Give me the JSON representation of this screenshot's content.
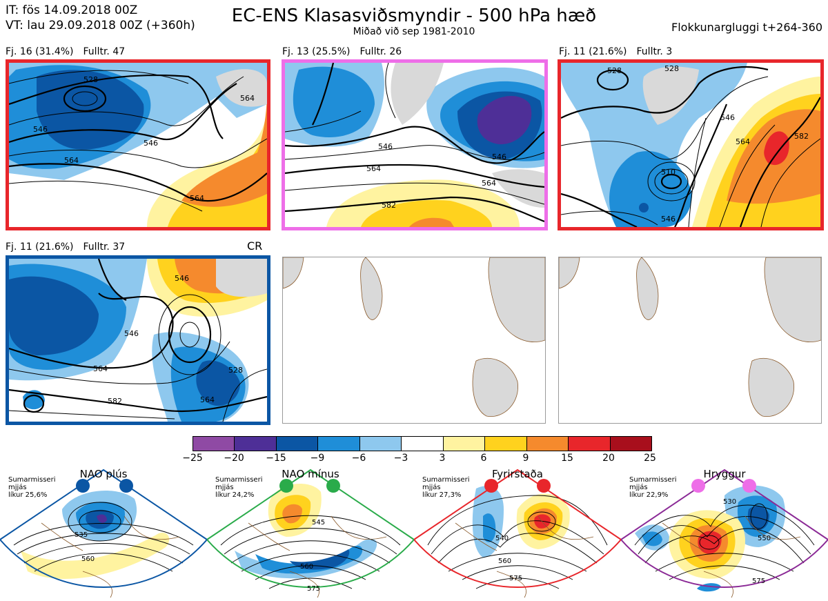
{
  "header": {
    "it_line": "IT: fös 14.09.2018 00Z",
    "vt_line": "VT: lau 29.09.2018 00Z  (+360h)",
    "title": "EC-ENS Klasasviðsmyndir - 500 hPa hæð",
    "subtitle": "Miðað við sep 1981-2010",
    "window": "Flokkunargluggi t+264-360"
  },
  "panels": [
    {
      "fj": "Fj. 16 (31.4%)",
      "fulltr": "Fulltr. 47",
      "border": "#e8262b",
      "contours": [
        "528",
        "546",
        "546",
        "564",
        "564",
        "564"
      ]
    },
    {
      "fj": "Fj. 13 (25.5%)",
      "fulltr": "Fulltr. 26",
      "border": "#ee6ee8",
      "contours": [
        "546",
        "546",
        "564",
        "564",
        "582"
      ]
    },
    {
      "fj": "Fj. 11 (21.6%)",
      "fulltr": "Fulltr. 3",
      "border": "#e8262b",
      "contours": [
        "528",
        "528",
        "546",
        "564",
        "582",
        "510",
        "546"
      ]
    },
    {
      "fj": "Fj. 11 (21.6%)",
      "fulltr": "Fulltr. 37",
      "border": "#0b56a4",
      "tag": "CR",
      "contours": [
        "546",
        "564",
        "564",
        "582",
        "546",
        "528"
      ]
    }
  ],
  "colorbar": {
    "labels": [
      "−25",
      "−20",
      "−15",
      "−9",
      "−6",
      "−3",
      "3",
      "6",
      "9",
      "15",
      "20",
      "25"
    ],
    "colors": [
      "#8f4aa4",
      "#4e2f97",
      "#0b56a4",
      "#1f8ed8",
      "#8ec8ee",
      "#ffffff",
      "#fff3a0",
      "#ffd21e",
      "#f58a2d",
      "#e8262b",
      "#a80f1c"
    ]
  },
  "regimes": [
    {
      "title": "NAO plús",
      "season": "Sumarmisseri",
      "smoothing": "mjjás",
      "probability": "líkur 25,6%",
      "dot_color": "#0b56a4",
      "frame_color": "#0b56a4",
      "contours": [
        "535",
        "560"
      ]
    },
    {
      "title": "NAO mínus",
      "season": "Sumarmisseri",
      "smoothing": "mjjás",
      "probability": "líkur 24,2%",
      "dot_color": "#2aab4a",
      "frame_color": "#2aab4a",
      "contours": [
        "545",
        "560",
        "575"
      ]
    },
    {
      "title": "Fyrirstaða",
      "season": "Sumarmisseri",
      "smoothing": "mjjás",
      "probability": "líkur 27,3%",
      "dot_color": "#e8262b",
      "frame_color": "#e8262b",
      "contours": [
        "540",
        "560",
        "575"
      ]
    },
    {
      "title": "Hryggur",
      "season": "Sumarmisseri",
      "smoothing": "mjjás",
      "probability": "líkur 22,9%",
      "dot_color": "#ee6ee8",
      "frame_color": "#8b2a96",
      "contours": [
        "530",
        "550",
        "575"
      ]
    }
  ]
}
